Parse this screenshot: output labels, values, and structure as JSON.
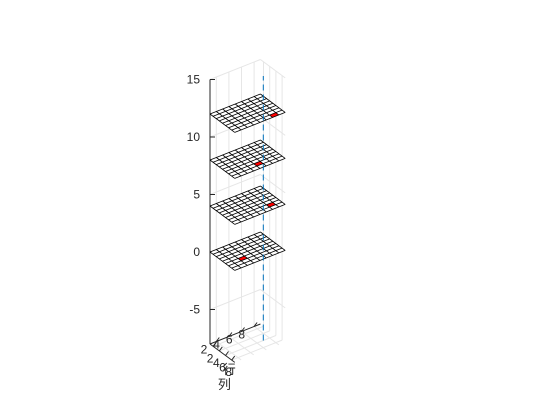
{
  "chart_data": {
    "type": "3d-stacked-grid-planes",
    "title": "",
    "xlabel": "列",
    "ylabel": "行",
    "zlabel": "",
    "xlim": [
      1,
      9
    ],
    "ylim": [
      1,
      9
    ],
    "zlim": [
      -8,
      15
    ],
    "xticks": [
      "2",
      "4",
      "6",
      "8"
    ],
    "yticks": [
      "2",
      "4",
      "6",
      "8"
    ],
    "zticks": [
      "-5",
      "0",
      "5",
      "10",
      "15"
    ],
    "grid": true,
    "planes": [
      {
        "z": 0,
        "highlight_cell": {
          "col": 6,
          "row": 3
        }
      },
      {
        "z": 4,
        "highlight_cell": {
          "col": 7,
          "row": 7
        }
      },
      {
        "z": 8,
        "highlight_cell": {
          "col": 7,
          "row": 5
        }
      },
      {
        "z": 12,
        "highlight_cell": {
          "col": 8,
          "row": 7
        }
      }
    ],
    "vertical_line": {
      "col": 6,
      "row": 7,
      "z_range": [
        -8,
        15
      ],
      "style": "dashed"
    },
    "colors": {
      "grid_line": "#000000",
      "plane_fill": "#ffffff",
      "highlight": "#ff0000",
      "vertical_line": "#0072bd",
      "axis_grid": "#e6e6e6",
      "axis": "#262626"
    }
  }
}
